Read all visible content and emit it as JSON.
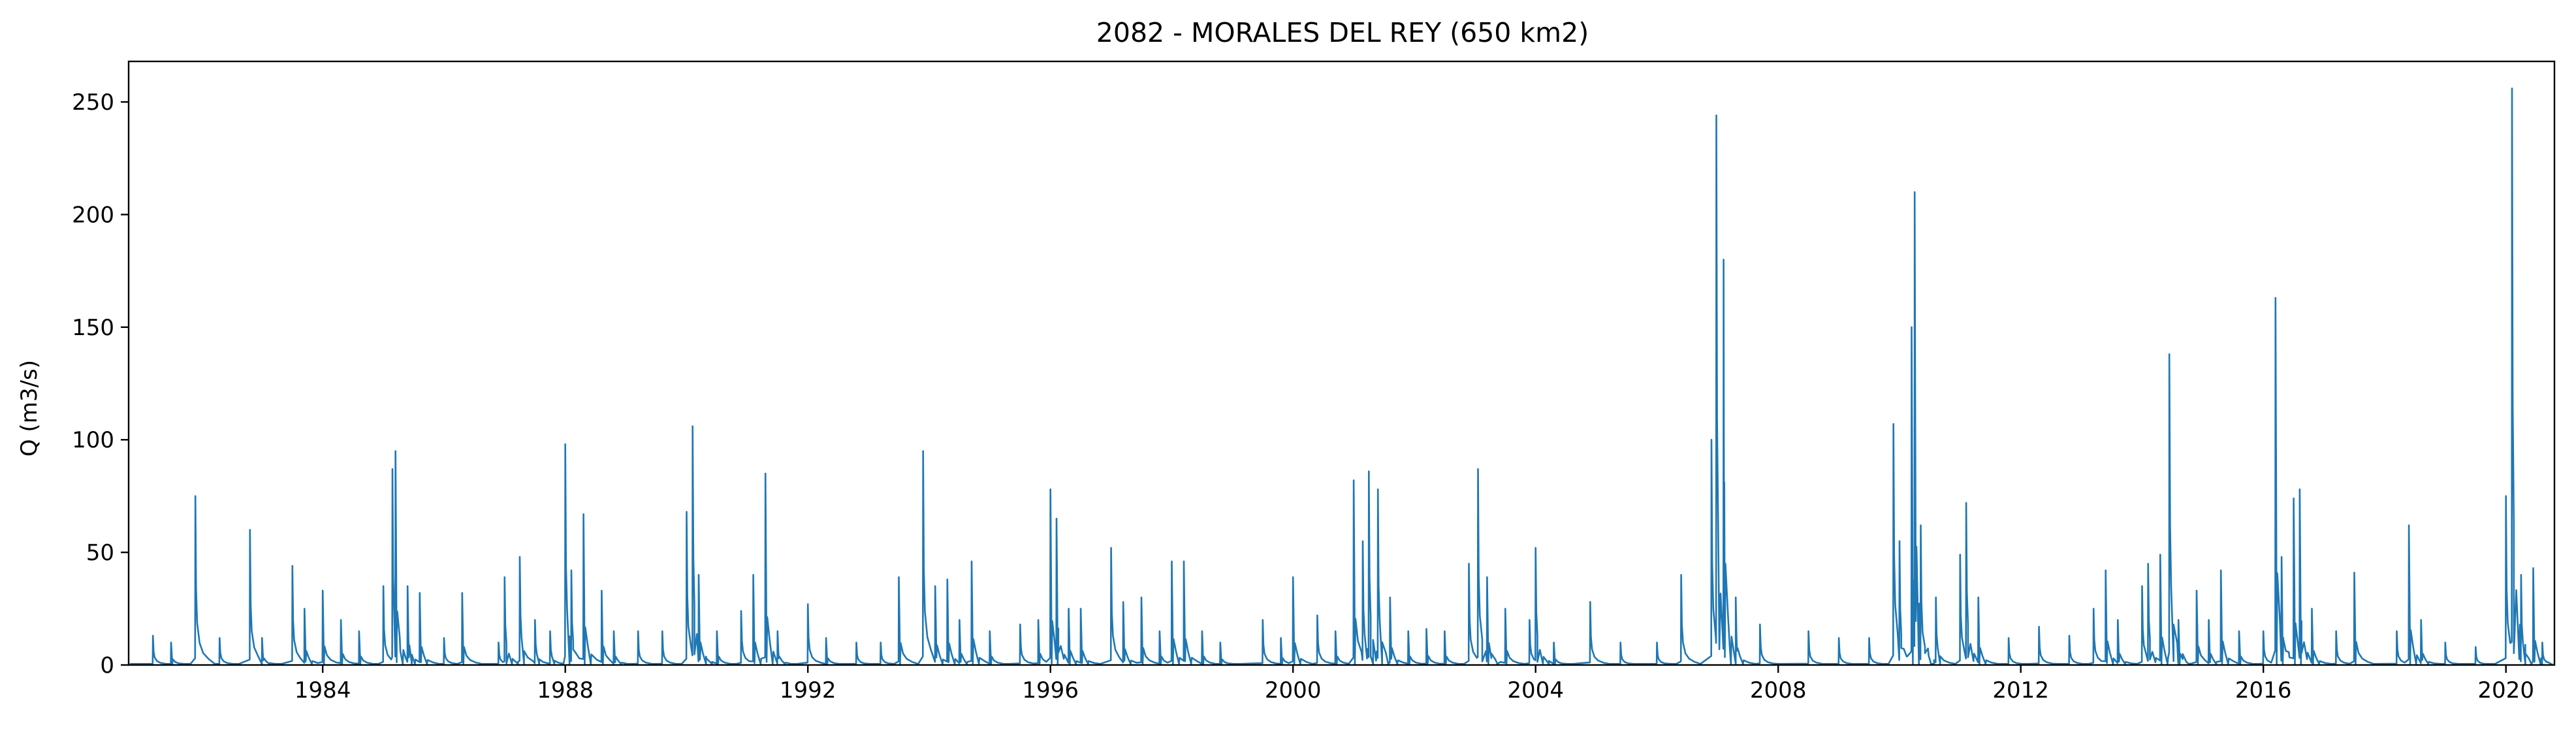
{
  "chart_data": {
    "type": "line",
    "title": "2082 - MORALES DEL REY (650 km2)",
    "xlabel": "",
    "ylabel": "Q (m3/s)",
    "xlim": [
      1980.8,
      2020.8
    ],
    "ylim": [
      0,
      268
    ],
    "x_ticks": [
      1984,
      1988,
      1992,
      1996,
      2000,
      2004,
      2008,
      2012,
      2016,
      2020
    ],
    "y_ticks": [
      0,
      50,
      100,
      150,
      200,
      250
    ],
    "grid": false,
    "line_color": "#1f77b4",
    "series": [
      {
        "peaks": [
          [
            1981.2,
            13
          ],
          [
            1981.5,
            10
          ],
          [
            1981.9,
            75
          ],
          [
            1982.3,
            12
          ],
          [
            1982.8,
            60
          ],
          [
            1983.0,
            12
          ],
          [
            1983.5,
            44
          ],
          [
            1983.7,
            25
          ],
          [
            1984.0,
            33
          ],
          [
            1984.3,
            20
          ],
          [
            1984.6,
            15
          ],
          [
            1985.0,
            35
          ],
          [
            1985.15,
            87
          ],
          [
            1985.2,
            95
          ],
          [
            1985.4,
            35
          ],
          [
            1985.6,
            32
          ],
          [
            1986.0,
            12
          ],
          [
            1986.3,
            32
          ],
          [
            1986.9,
            10
          ],
          [
            1987.0,
            39
          ],
          [
            1987.25,
            48
          ],
          [
            1987.5,
            20
          ],
          [
            1987.75,
            15
          ],
          [
            1988.0,
            98
          ],
          [
            1988.1,
            42
          ],
          [
            1988.3,
            67
          ],
          [
            1988.6,
            33
          ],
          [
            1988.8,
            15
          ],
          [
            1989.2,
            15
          ],
          [
            1989.6,
            15
          ],
          [
            1990.0,
            68
          ],
          [
            1990.1,
            106
          ],
          [
            1990.2,
            40
          ],
          [
            1990.5,
            15
          ],
          [
            1990.9,
            24
          ],
          [
            1991.1,
            40
          ],
          [
            1991.3,
            85
          ],
          [
            1991.5,
            15
          ],
          [
            1992.0,
            27
          ],
          [
            1992.3,
            12
          ],
          [
            1992.8,
            10
          ],
          [
            1993.2,
            10
          ],
          [
            1993.5,
            39
          ],
          [
            1993.9,
            95
          ],
          [
            1994.1,
            35
          ],
          [
            1994.3,
            38
          ],
          [
            1994.5,
            20
          ],
          [
            1994.7,
            46
          ],
          [
            1995.0,
            15
          ],
          [
            1995.5,
            18
          ],
          [
            1995.8,
            20
          ],
          [
            1996.0,
            78
          ],
          [
            1996.1,
            65
          ],
          [
            1996.3,
            25
          ],
          [
            1996.5,
            25
          ],
          [
            1997.0,
            52
          ],
          [
            1997.2,
            28
          ],
          [
            1997.5,
            30
          ],
          [
            1997.8,
            15
          ],
          [
            1998.0,
            46
          ],
          [
            1998.2,
            46
          ],
          [
            1998.5,
            15
          ],
          [
            1998.8,
            10
          ],
          [
            1999.5,
            20
          ],
          [
            1999.8,
            12
          ],
          [
            2000.0,
            39
          ],
          [
            2000.4,
            22
          ],
          [
            2000.7,
            15
          ],
          [
            2001.0,
            82
          ],
          [
            2001.15,
            55
          ],
          [
            2001.25,
            86
          ],
          [
            2001.4,
            78
          ],
          [
            2001.6,
            30
          ],
          [
            2001.9,
            15
          ],
          [
            2002.2,
            16
          ],
          [
            2002.5,
            15
          ],
          [
            2002.9,
            45
          ],
          [
            2003.05,
            87
          ],
          [
            2003.2,
            39
          ],
          [
            2003.5,
            25
          ],
          [
            2003.9,
            20
          ],
          [
            2004.0,
            52
          ],
          [
            2004.3,
            10
          ],
          [
            2004.9,
            28
          ],
          [
            2005.4,
            10
          ],
          [
            2006.0,
            10
          ],
          [
            2006.4,
            40
          ],
          [
            2006.9,
            100
          ],
          [
            2006.98,
            244
          ],
          [
            2007.1,
            180
          ],
          [
            2007.3,
            30
          ],
          [
            2007.7,
            18
          ],
          [
            2008.5,
            15
          ],
          [
            2009.0,
            12
          ],
          [
            2009.5,
            12
          ],
          [
            2009.9,
            107
          ],
          [
            2010.0,
            55
          ],
          [
            2010.2,
            150
          ],
          [
            2010.25,
            210
          ],
          [
            2010.35,
            62
          ],
          [
            2010.6,
            30
          ],
          [
            2011.0,
            49
          ],
          [
            2011.1,
            72
          ],
          [
            2011.3,
            30
          ],
          [
            2011.8,
            12
          ],
          [
            2012.3,
            17
          ],
          [
            2012.8,
            13
          ],
          [
            2013.2,
            25
          ],
          [
            2013.4,
            42
          ],
          [
            2013.6,
            20
          ],
          [
            2014.0,
            35
          ],
          [
            2014.1,
            45
          ],
          [
            2014.3,
            49
          ],
          [
            2014.45,
            138
          ],
          [
            2014.6,
            20
          ],
          [
            2014.9,
            33
          ],
          [
            2015.1,
            20
          ],
          [
            2015.3,
            42
          ],
          [
            2015.6,
            15
          ],
          [
            2016.0,
            15
          ],
          [
            2016.2,
            163
          ],
          [
            2016.3,
            48
          ],
          [
            2016.5,
            74
          ],
          [
            2016.6,
            78
          ],
          [
            2016.8,
            25
          ],
          [
            2017.2,
            15
          ],
          [
            2017.5,
            41
          ],
          [
            2018.2,
            15
          ],
          [
            2018.4,
            62
          ],
          [
            2018.6,
            20
          ],
          [
            2019.0,
            10
          ],
          [
            2019.5,
            8
          ],
          [
            2020.0,
            75
          ],
          [
            2020.1,
            256
          ],
          [
            2020.25,
            40
          ],
          [
            2020.45,
            43
          ],
          [
            2020.6,
            10
          ]
        ]
      }
    ]
  }
}
